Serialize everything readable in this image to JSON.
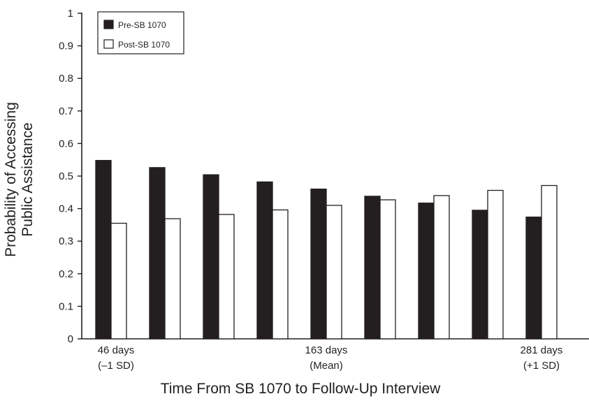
{
  "chart_data": {
    "type": "bar",
    "xlabel": "Time From SB 1070 to Follow-Up Interview",
    "ylabel": [
      "Probability of Accessing",
      "Public Assistance"
    ],
    "ylim": [
      0,
      1
    ],
    "yticks": [
      "0",
      "0.1",
      "0.2",
      "0.3",
      "0.4",
      "0.5",
      "0.6",
      "0.7",
      "0.8",
      "0.9",
      "1"
    ],
    "x_labels": [
      {
        "index": 0,
        "lines": [
          "46 days",
          "(–1 SD)"
        ]
      },
      {
        "index": 4,
        "lines": [
          "163 days",
          "(Mean)"
        ]
      },
      {
        "index": 8,
        "lines": [
          "281 days",
          "(+1 SD)"
        ]
      }
    ],
    "series": [
      {
        "name": "Pre-SB 1070",
        "color": "#231f20",
        "values": [
          0.548,
          0.526,
          0.504,
          0.482,
          0.46,
          0.438,
          0.417,
          0.395,
          0.374
        ]
      },
      {
        "name": "Post-SB 1070",
        "color": "#ffffff",
        "values": [
          0.355,
          0.369,
          0.382,
          0.396,
          0.41,
          0.427,
          0.44,
          0.456,
          0.471
        ]
      }
    ],
    "legend_position": "top-left",
    "grid": false
  }
}
